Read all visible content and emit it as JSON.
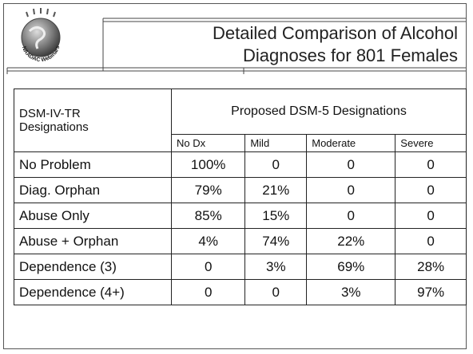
{
  "header": {
    "title_lines": [
      "Detailed Comparison of Alcohol",
      "Diagnoses for 801 Females"
    ],
    "logo_text": "NAADAC Webinars"
  },
  "table": {
    "corner_lines": [
      "DSM-IV-TR",
      "Designations"
    ],
    "group_header": "Proposed DSM-5 Designations",
    "columns": [
      "No Dx",
      "Mild",
      "Moderate",
      "Severe"
    ],
    "rows": [
      [
        "No Problem",
        "100%",
        "0",
        "0",
        "0"
      ],
      [
        "Diag. Orphan",
        "79%",
        "21%",
        "0",
        "0"
      ],
      [
        "Abuse Only",
        "85%",
        "15%",
        "0",
        "0"
      ],
      [
        "Abuse + Orphan",
        "4%",
        "74%",
        "22%",
        "0"
      ],
      [
        "Dependence (3)",
        "0",
        "3%",
        "69%",
        "28%"
      ],
      [
        "Dependence (4+)",
        "0",
        "0",
        "3%",
        "97%"
      ]
    ]
  }
}
